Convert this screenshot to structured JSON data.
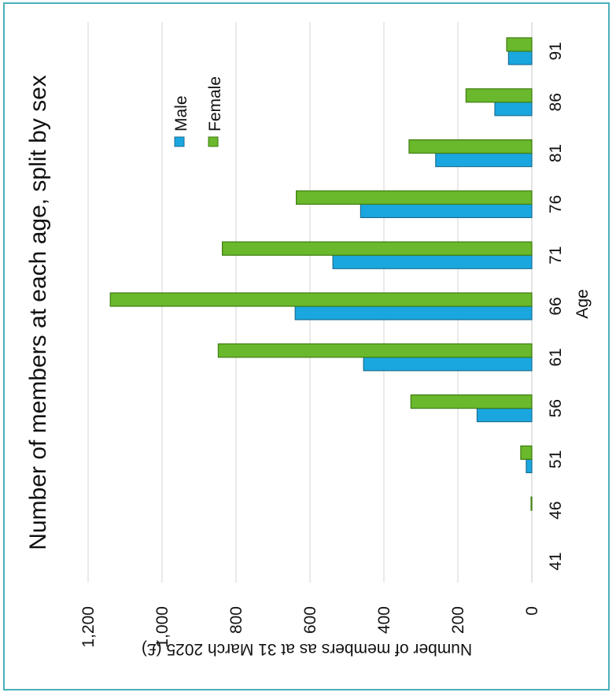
{
  "chart_data": {
    "type": "bar",
    "orientation": "horizontal, rotated 90 degrees clockwise",
    "title": "Number of members at each age, split by sex",
    "xlabel": "Age",
    "ylabel": "Number of members as at 31 March 2025 (£)",
    "categories": [
      "41",
      "46",
      "51",
      "56",
      "61",
      "66",
      "71",
      "76",
      "81",
      "86",
      "91"
    ],
    "series": [
      {
        "name": "Male",
        "color": "#1aa7e0",
        "values": [
          0,
          0,
          15,
          148,
          455,
          640,
          538,
          463,
          260,
          100,
          63
        ]
      },
      {
        "name": "Female",
        "color": "#6ab82b",
        "values": [
          0,
          2,
          30,
          327,
          848,
          1140,
          837,
          637,
          332,
          178,
          68
        ]
      }
    ],
    "ylim": [
      0,
      1200
    ],
    "y_ticks": [
      "0",
      "200",
      "400",
      "600",
      "800",
      "1,000",
      "1,200"
    ],
    "grid": true,
    "legend_position": "top-right"
  }
}
